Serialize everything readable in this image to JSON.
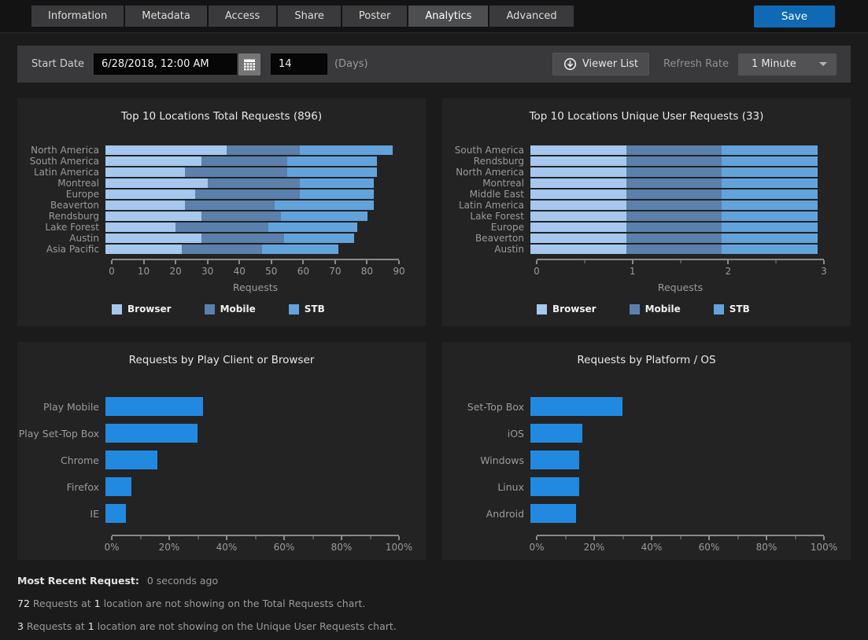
{
  "header": {
    "tabs": [
      {
        "label": "Information",
        "active": false
      },
      {
        "label": "Metadata",
        "active": false
      },
      {
        "label": "Access",
        "active": false
      },
      {
        "label": "Share",
        "active": false
      },
      {
        "label": "Poster",
        "active": false
      },
      {
        "label": "Analytics",
        "active": true
      },
      {
        "label": "Advanced",
        "active": false
      }
    ],
    "save_label": "Save"
  },
  "toolbar": {
    "start_date_label": "Start Date",
    "start_date_value": "6/28/2018, 12:00 AM",
    "days_value": "14",
    "days_label": "(Days)",
    "viewer_list_label": "Viewer List",
    "refresh_rate_label": "Refresh Rate",
    "refresh_rate_value": "1 Minute"
  },
  "colors": {
    "accent_blue": "#0f69b4",
    "bar_browser": "#a6c8ee",
    "bar_mobile": "#5b80ab",
    "bar_stb": "#63a3dc",
    "bar_bright": "#2189e0"
  },
  "chart_data": [
    {
      "type": "bar",
      "stacked": true,
      "title": "Top 10 Locations Total Requests (896)",
      "xlabel": "Requests",
      "xlim": [
        0,
        90
      ],
      "ticks": [
        0,
        10,
        20,
        30,
        40,
        50,
        60,
        70,
        80,
        90
      ],
      "minor_ticks": [],
      "tick_suffix": "",
      "legend": true,
      "legend_position": "bottom-left",
      "categories": [
        "North America",
        "South America",
        "Latin America",
        "Montreal",
        "Europe",
        "Beaverton",
        "Rendsburg",
        "Lake Forest",
        "Austin",
        "Asia Pacific"
      ],
      "series": [
        {
          "name": "Browser",
          "color": "#a6c8ee",
          "values": [
            38,
            30,
            25,
            32,
            28,
            25,
            30,
            22,
            30,
            24
          ]
        },
        {
          "name": "Mobile",
          "color": "#5b80ab",
          "values": [
            23,
            27,
            32,
            29,
            33,
            28,
            25,
            29,
            26,
            25
          ]
        },
        {
          "name": "STB",
          "color": "#63a3dc",
          "values": [
            29,
            28,
            28,
            23,
            23,
            31,
            27,
            28,
            22,
            24
          ]
        }
      ]
    },
    {
      "type": "bar",
      "stacked": true,
      "title": "Top 10 Locations Unique User Requests (33)",
      "xlabel": "Requests",
      "xlim": [
        0,
        3
      ],
      "ticks": [
        0,
        1,
        2,
        3
      ],
      "minor_ticks": [
        0.5,
        1.5,
        2.5
      ],
      "tick_suffix": "",
      "legend": true,
      "legend_position": "bottom-left",
      "categories": [
        "South America",
        "Rendsburg",
        "North America",
        "Montreal",
        "Middle East",
        "Latin America",
        "Lake Forest",
        "Europe",
        "Beaverton",
        "Austin"
      ],
      "series": [
        {
          "name": "Browser",
          "color": "#a6c8ee",
          "values": [
            1,
            1,
            1,
            1,
            1,
            1,
            1,
            1,
            1,
            1
          ]
        },
        {
          "name": "Mobile",
          "color": "#5b80ab",
          "values": [
            1,
            1,
            1,
            1,
            1,
            1,
            1,
            1,
            1,
            1
          ]
        },
        {
          "name": "STB",
          "color": "#63a3dc",
          "values": [
            1,
            1,
            1,
            1,
            1,
            1,
            1,
            1,
            1,
            1
          ]
        }
      ]
    },
    {
      "type": "bar",
      "stacked": false,
      "title": "Requests by Play Client or Browser",
      "xlabel": "",
      "xlim": [
        0,
        100
      ],
      "ticks": [
        0,
        20,
        40,
        60,
        80,
        100
      ],
      "minor_ticks": [
        10,
        30,
        50,
        70,
        90
      ],
      "tick_suffix": "%",
      "legend": false,
      "categories": [
        "Play Mobile",
        "Play Set-Top Box",
        "Chrome",
        "Firefox",
        "IE"
      ],
      "series": [
        {
          "name": "Requests",
          "color": "#2189e0",
          "values": [
            34,
            32,
            18,
            9,
            7
          ]
        }
      ]
    },
    {
      "type": "bar",
      "stacked": false,
      "title": "Requests by Platform / OS",
      "xlabel": "",
      "xlim": [
        0,
        100
      ],
      "ticks": [
        0,
        20,
        40,
        60,
        80,
        100
      ],
      "minor_ticks": [
        10,
        30,
        50,
        70,
        90
      ],
      "tick_suffix": "%",
      "legend": false,
      "categories": [
        "Set-Top Box",
        "iOS",
        "Windows",
        "Linux",
        "Android"
      ],
      "series": [
        {
          "name": "Requests",
          "color": "#2189e0",
          "values": [
            32,
            18,
            17,
            17,
            16
          ]
        }
      ]
    }
  ],
  "footer": {
    "most_recent_label": "Most Recent Request:",
    "most_recent_value": "0 seconds ago",
    "notes": [
      [
        {
          "text": "72",
          "highlight": true
        },
        {
          "text": " Requests at ",
          "highlight": false
        },
        {
          "text": "1",
          "highlight": true
        },
        {
          "text": " location are not showing on the Total Requests chart.",
          "highlight": false
        }
      ],
      [
        {
          "text": "3",
          "highlight": true
        },
        {
          "text": " Requests at ",
          "highlight": false
        },
        {
          "text": "1",
          "highlight": true
        },
        {
          "text": " location are not showing on the Unique User Requests chart.",
          "highlight": false
        }
      ]
    ]
  }
}
